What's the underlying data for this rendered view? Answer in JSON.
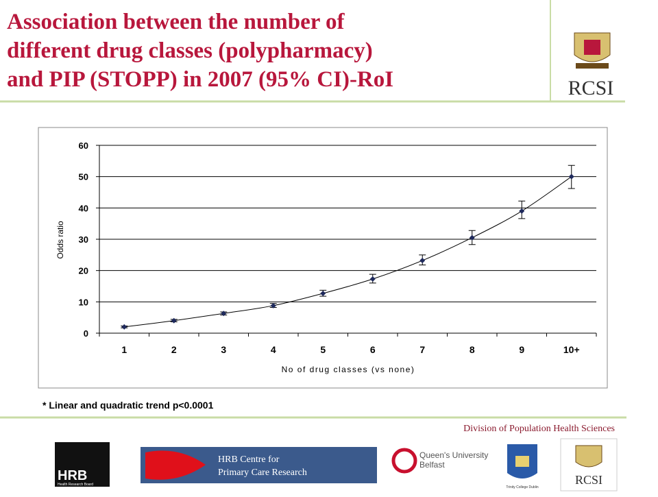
{
  "slide": {
    "title_lines": [
      "Association between the number of",
      "different drug classes (polypharmacy)",
      "and PIP (STOPP) in 2007 (95% CI)-RoI"
    ],
    "footnote": "* Linear and quadratic trend p<0.0001",
    "division": "Division of Population Health Sciences",
    "top_logo": "RCSI",
    "logos": {
      "hrb": "HRB",
      "hrb_sub": "Health Research Board",
      "centre_1": "HRB Centre for",
      "centre_2": "Primary Care Research",
      "queens_1": "Queen's University",
      "queens_2": "Belfast",
      "trinity": "Trinity College Dublin",
      "rcsi": "RCSI"
    }
  },
  "chart_data": {
    "type": "line",
    "x_label": "No of drug classes (vs none)",
    "y_label": "Odds ratio",
    "categories": [
      "1",
      "2",
      "3",
      "4",
      "5",
      "6",
      "7",
      "8",
      "9",
      "10+"
    ],
    "series": [
      {
        "name": "Odds ratio",
        "color": "#1f2a5c",
        "values": [
          2,
          4,
          6.3,
          8.8,
          12.7,
          17.3,
          23.2,
          30.5,
          39,
          50
        ],
        "ci_low": [
          1.7,
          3.6,
          5.8,
          8.2,
          11.8,
          16,
          21.8,
          28.3,
          36.6,
          46.2
        ],
        "ci_high": [
          2.3,
          4.4,
          6.8,
          9.5,
          13.7,
          18.8,
          25,
          32.8,
          42.2,
          53.6
        ]
      }
    ],
    "ylim": [
      0,
      60
    ],
    "yticks": [
      0,
      10,
      20,
      30,
      40,
      50,
      60
    ],
    "grid": true
  }
}
